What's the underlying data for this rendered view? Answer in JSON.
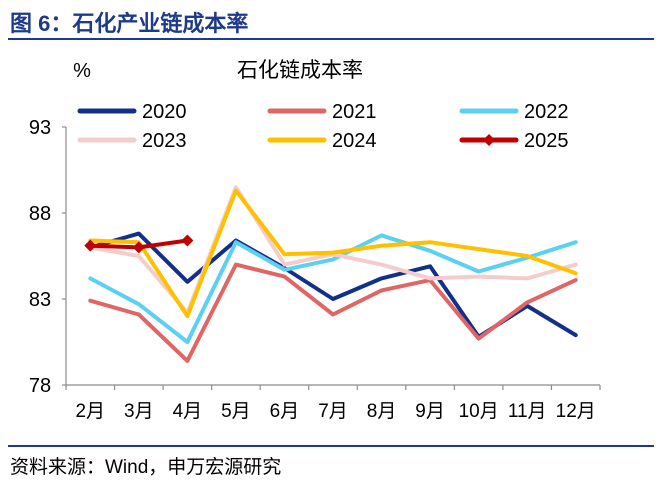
{
  "header": {
    "title": "图 6：石化产业链成本率"
  },
  "footer": {
    "source": "资料来源：Wind，申万宏源研究"
  },
  "chart_data": {
    "type": "line",
    "title": "石化链成本率",
    "ylabel": "%",
    "xlabel": "",
    "categories": [
      "2月",
      "3月",
      "4月",
      "5月",
      "6月",
      "7月",
      "8月",
      "9月",
      "10月",
      "11月",
      "12月"
    ],
    "ylim": [
      78,
      93
    ],
    "yticks": [
      78,
      83,
      88,
      93
    ],
    "grid": false,
    "legend_position": "top",
    "series": [
      {
        "name": "2020",
        "color": "#12308a",
        "values": [
          86.0,
          86.8,
          84.0,
          86.4,
          84.8,
          83.0,
          84.2,
          84.9,
          80.8,
          82.6,
          80.9
        ]
      },
      {
        "name": "2021",
        "color": "#e06666",
        "values": [
          82.9,
          82.1,
          79.4,
          85.0,
          84.3,
          82.1,
          83.5,
          84.1,
          80.7,
          82.8,
          84.1
        ]
      },
      {
        "name": "2022",
        "color": "#5bd0f0",
        "values": [
          84.2,
          82.7,
          80.5,
          86.3,
          84.7,
          85.3,
          86.7,
          85.8,
          84.6,
          85.4,
          86.3
        ]
      },
      {
        "name": "2023",
        "color": "#f5cccc",
        "values": [
          86.0,
          85.5,
          82.2,
          89.5,
          85.0,
          85.6,
          85.0,
          84.2,
          84.3,
          84.2,
          85.0
        ]
      },
      {
        "name": "2024",
        "color": "#ffc000",
        "values": [
          86.4,
          86.3,
          82.0,
          89.3,
          85.6,
          85.7,
          86.1,
          86.3,
          85.9,
          85.5,
          84.5
        ]
      },
      {
        "name": "2025",
        "color": "#c00000",
        "marker": "diamond",
        "values": [
          86.1,
          86.0,
          86.4,
          null,
          null,
          null,
          null,
          null,
          null,
          null,
          null
        ]
      }
    ]
  }
}
